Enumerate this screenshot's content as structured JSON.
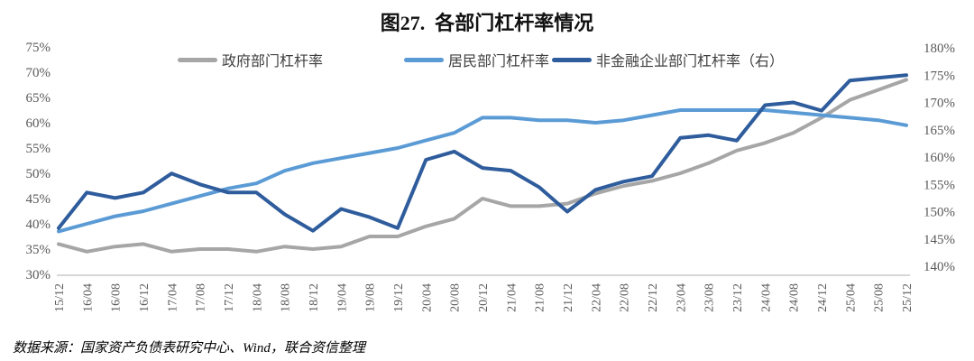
{
  "title": "图27.  各部门杠杆率情况",
  "source_note": "数据来源：国家资产负债表研究中心、Wind，联合资信整理",
  "colors": {
    "government": "#a6a6a6",
    "household": "#5b9bd5",
    "nfc": "#2e5c9c",
    "axis_text": "#595959",
    "axis_line": "#bfbfbf"
  },
  "chart_data": {
    "type": "line",
    "grid": false,
    "legend_position": "top",
    "categories": [
      "15/12",
      "16/04",
      "16/08",
      "16/12",
      "17/04",
      "17/08",
      "17/12",
      "18/04",
      "18/08",
      "18/12",
      "19/04",
      "19/08",
      "19/12",
      "20/04",
      "20/08",
      "20/12",
      "21/04",
      "21/08",
      "21/12",
      "22/04",
      "22/08",
      "22/12",
      "23/04",
      "23/08",
      "23/12",
      "24/04",
      "24/08",
      "24/12",
      "25/04",
      "25/08",
      "25/12"
    ],
    "series": [
      {
        "id": "government",
        "name": "政府部门杠杆率",
        "axis": "left",
        "color": "#a6a6a6",
        "values": [
          36,
          34.5,
          35.5,
          36,
          34.5,
          35,
          35,
          34.5,
          35.5,
          35,
          35.5,
          37.5,
          37.5,
          39.5,
          41,
          45,
          43.5,
          43.5,
          44,
          46,
          47.5,
          48.5,
          50,
          52,
          54.5,
          56,
          58,
          61,
          64.5,
          66.5,
          68.5
        ]
      },
      {
        "id": "household",
        "name": "居民部门杠杆率",
        "axis": "left",
        "color": "#5b9bd5",
        "values": [
          38.5,
          40,
          41.5,
          42.5,
          44,
          45.5,
          47,
          48,
          50.5,
          52,
          53,
          54,
          55,
          56.5,
          58,
          61,
          61,
          60.5,
          60.5,
          60,
          60.5,
          61.5,
          62.5,
          62.5,
          62.5,
          62.5,
          62,
          61.5,
          61,
          60.5,
          59.5
        ]
      },
      {
        "id": "nfc",
        "name": "非金融企业部门杠杆率（右）",
        "axis": "right",
        "color": "#2e5c9c",
        "values": [
          147,
          153.5,
          152.5,
          153.5,
          157,
          155,
          153.5,
          153.5,
          149.5,
          146.5,
          150.5,
          149,
          147,
          159.5,
          161,
          158,
          157.5,
          154.5,
          150,
          154,
          155.5,
          156.5,
          163.5,
          164,
          163,
          169.5,
          170,
          168.5,
          174,
          174.5,
          175
        ]
      }
    ],
    "axes": {
      "left": {
        "min": 30,
        "max": 75,
        "ticks": [
          "75%",
          "70%",
          "65%",
          "60%",
          "55%",
          "50%",
          "45%",
          "40%",
          "35%",
          "30%"
        ]
      },
      "right": {
        "min": 140,
        "max": 180,
        "ticks": [
          "180%",
          "175%",
          "170%",
          "165%",
          "160%",
          "155%",
          "150%",
          "145%",
          "140%"
        ]
      }
    }
  }
}
